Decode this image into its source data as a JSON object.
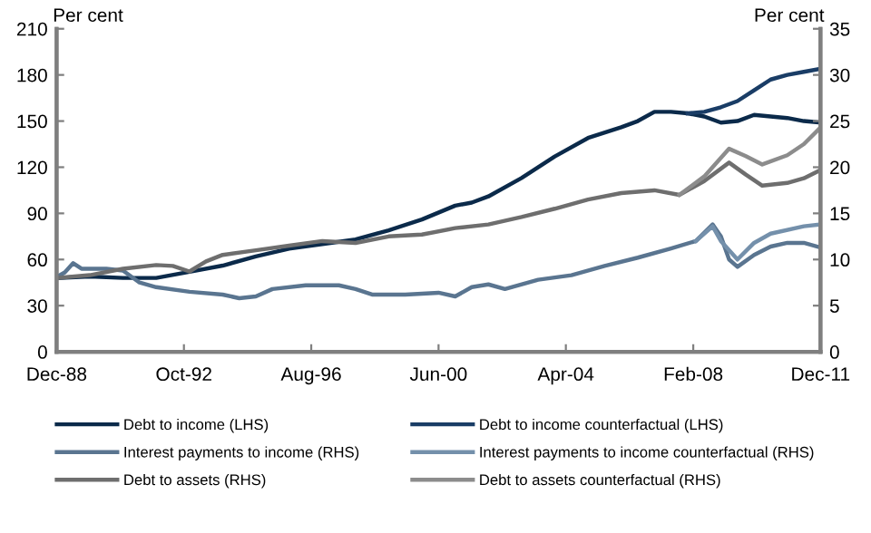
{
  "chart_data": {
    "type": "line",
    "ylabel": "Per cent",
    "y2label": "Per cent",
    "xlim": [
      "1988-12",
      "2011-12"
    ],
    "xticks": [
      {
        "value": "1988-12",
        "label": "Dec-88"
      },
      {
        "value": "1992-10",
        "label": "Oct-92"
      },
      {
        "value": "1996-08",
        "label": "Aug-96"
      },
      {
        "value": "2000-06",
        "label": "Jun-00"
      },
      {
        "value": "2004-04",
        "label": "Apr-04"
      },
      {
        "value": "2008-02",
        "label": "Feb-08"
      },
      {
        "value": "2011-12",
        "label": "Dec-11"
      }
    ],
    "ylim": [
      0,
      210
    ],
    "yticks": [
      0,
      30,
      60,
      90,
      120,
      150,
      180,
      210
    ],
    "y2lim": [
      0,
      35
    ],
    "y2ticks": [
      0,
      5,
      10,
      15,
      20,
      25,
      30,
      35
    ],
    "grid": false,
    "legend": "bottom",
    "series": [
      {
        "name": "Debt to income (LHS)",
        "color": "#0b2a4a",
        "x": [
          "1988-12",
          "1989-12",
          "1990-12",
          "1991-12",
          "1992-12",
          "1993-12",
          "1994-12",
          "1995-12",
          "1996-12",
          "1997-12",
          "1998-12",
          "1999-12",
          "2000-12",
          "2001-06",
          "2001-12",
          "2002-12",
          "2003-12",
          "2004-12",
          "2005-12",
          "2006-06",
          "2006-12",
          "2007-06",
          "2007-12",
          "2008-06",
          "2008-12",
          "2009-06",
          "2009-12",
          "2010-06",
          "2010-12",
          "2011-06",
          "2011-12"
        ],
        "values": [
          48,
          49,
          48,
          48,
          52,
          56,
          62,
          67,
          70,
          73,
          79,
          86,
          95,
          97,
          101,
          113,
          127,
          139,
          146,
          150,
          156,
          156,
          155,
          153,
          149,
          150,
          154,
          153,
          152,
          150,
          149
        ]
      },
      {
        "name": "Debt to income counterfactual (LHS)",
        "color": "#1a3d66",
        "x": [
          "2007-12",
          "2008-06",
          "2008-12",
          "2009-06",
          "2009-12",
          "2010-06",
          "2010-12",
          "2011-06",
          "2011-12"
        ],
        "values": [
          155,
          156,
          159,
          163,
          170,
          177,
          180,
          182,
          184
        ]
      },
      {
        "name": "Interest payments to income (RHS)",
        "color": "#5a7590",
        "axis": "y2",
        "x": [
          "1988-12",
          "1989-03",
          "1989-06",
          "1989-09",
          "1990-06",
          "1990-12",
          "1991-06",
          "1991-12",
          "1992-12",
          "1993-12",
          "1994-06",
          "1994-12",
          "1995-06",
          "1996-06",
          "1997-06",
          "1997-12",
          "1998-06",
          "1999-06",
          "2000-06",
          "2000-12",
          "2001-06",
          "2001-12",
          "2002-06",
          "2003-06",
          "2004-06",
          "2005-06",
          "2006-06",
          "2007-06",
          "2008-03",
          "2008-09",
          "2008-12",
          "2009-03",
          "2009-06",
          "2009-12",
          "2010-06",
          "2010-12",
          "2011-06",
          "2011-12"
        ],
        "values": [
          8.1,
          8.6,
          9.6,
          9.0,
          9.0,
          8.8,
          7.5,
          7.0,
          6.5,
          6.2,
          5.8,
          6.0,
          6.8,
          7.2,
          7.2,
          6.8,
          6.2,
          6.2,
          6.4,
          6.0,
          7.0,
          7.3,
          6.8,
          7.8,
          8.3,
          9.3,
          10.2,
          11.2,
          12.0,
          13.8,
          12.5,
          10.0,
          9.2,
          10.5,
          11.4,
          11.8,
          11.8,
          11.3
        ]
      },
      {
        "name": "Interest payments to income counterfactual (RHS)",
        "color": "#7490ab",
        "axis": "y2",
        "x": [
          "2008-03",
          "2008-09",
          "2008-12",
          "2009-06",
          "2009-12",
          "2010-06",
          "2011-06",
          "2011-12"
        ],
        "values": [
          12.0,
          13.6,
          12.0,
          10.0,
          11.8,
          12.8,
          13.6,
          13.8
        ]
      },
      {
        "name": "Debt to assets (RHS)",
        "color": "#6e6e6e",
        "axis": "y2",
        "x": [
          "1988-12",
          "1989-12",
          "1990-12",
          "1991-12",
          "1992-06",
          "1992-12",
          "1993-06",
          "1993-12",
          "1994-12",
          "1995-12",
          "1996-12",
          "1997-12",
          "1998-12",
          "1999-12",
          "2000-12",
          "2001-12",
          "2002-12",
          "2003-12",
          "2004-12",
          "2005-12",
          "2006-12",
          "2007-09",
          "2008-06",
          "2009-03",
          "2009-09",
          "2010-03",
          "2010-12",
          "2011-06",
          "2011-12"
        ],
        "values": [
          8.0,
          8.3,
          9.0,
          9.4,
          9.3,
          8.7,
          9.8,
          10.5,
          11.0,
          11.5,
          12.0,
          11.8,
          12.5,
          12.7,
          13.4,
          13.8,
          14.6,
          15.5,
          16.5,
          17.2,
          17.5,
          17.0,
          18.5,
          20.5,
          19.2,
          18.0,
          18.3,
          18.8,
          19.7
        ]
      },
      {
        "name": "Debt to assets counterfactual (RHS)",
        "color": "#8c8c8c",
        "axis": "y2",
        "x": [
          "2007-09",
          "2008-06",
          "2009-03",
          "2009-09",
          "2010-03",
          "2010-12",
          "2011-06",
          "2011-12"
        ],
        "values": [
          17.0,
          19.0,
          22.0,
          21.2,
          20.3,
          21.3,
          22.5,
          24.3
        ]
      }
    ]
  }
}
